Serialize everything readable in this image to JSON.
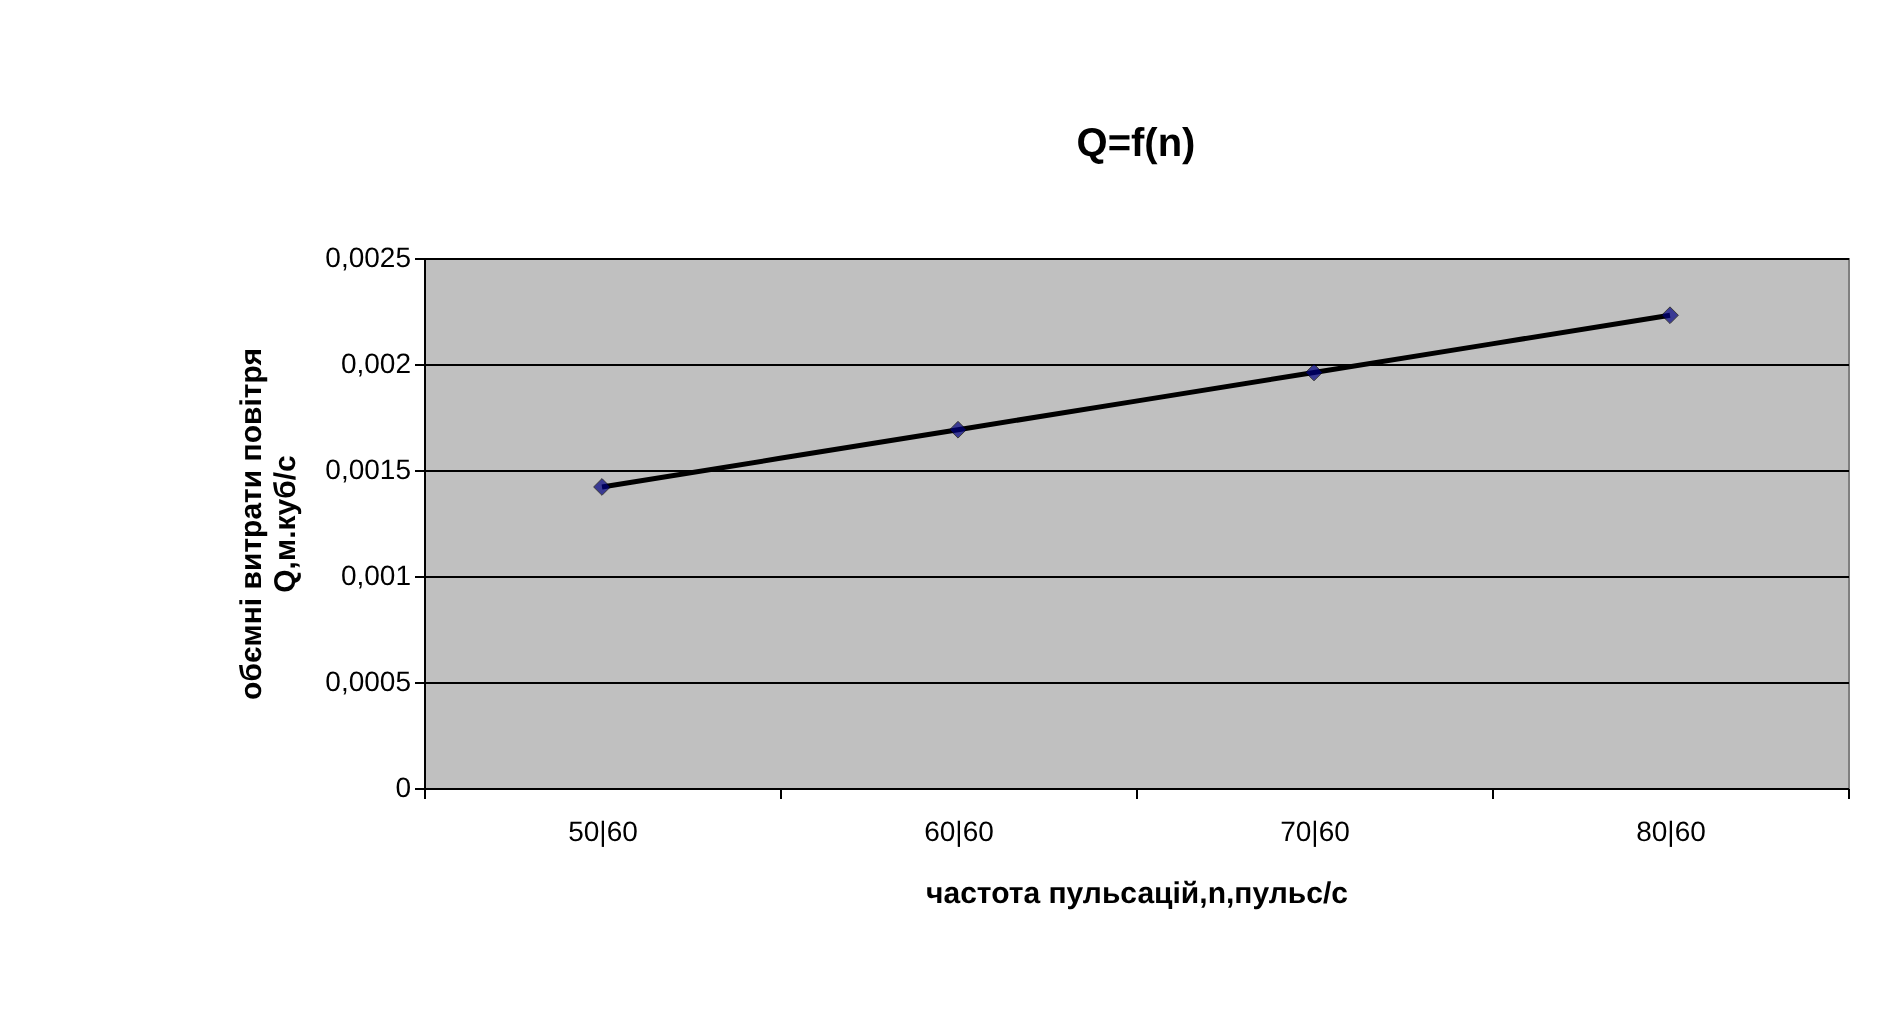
{
  "chart_data": {
    "type": "line",
    "title": "Q=f(n)",
    "xlabel": "частота пульсацій,n,пульс/с",
    "ylabel": "обємні витрати повітря\nQ,м.куб/с",
    "categories": [
      "50|60",
      "60|60",
      "70|60",
      "80|60"
    ],
    "series": [
      {
        "color": "#000000",
        "values": [
          0.00142,
          0.00169,
          0.00196,
          0.00223
        ]
      }
    ],
    "ylim": [
      0,
      0.0025
    ],
    "yticks": [
      0,
      {
        "value": 0.0005,
        "label": "0,0005"
      },
      {
        "value": 0.001,
        "label": "0,001"
      },
      {
        "value": 0.0015,
        "label": "0,0015"
      },
      {
        "value": 0.002,
        "label": "0,002"
      },
      {
        "value": 0.0025,
        "label": "0,0025"
      }
    ],
    "grid": "y",
    "marker": "diamond",
    "line_style": "solid",
    "legend": false
  }
}
